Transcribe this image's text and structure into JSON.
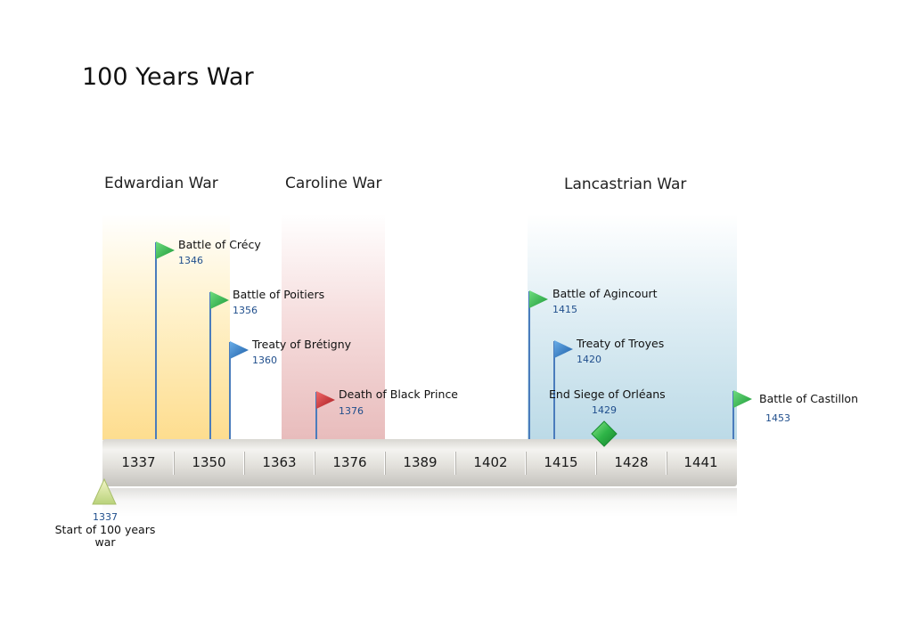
{
  "title": "100 Years War",
  "eras": [
    {
      "label": "Edwardian War",
      "color": "#fdd982"
    },
    {
      "label": "Caroline War",
      "color": "#e4b0b0"
    },
    {
      "label": "Lancastrian War",
      "color": "#b4d6e4"
    }
  ],
  "axis": {
    "ticks": [
      "1337",
      "1350",
      "1363",
      "1376",
      "1389",
      "1402",
      "1415",
      "1428",
      "1441"
    ]
  },
  "events": [
    {
      "title": "Battle of Crécy",
      "year": "1346",
      "flag_color": "green"
    },
    {
      "title": "Battle of Poitiers",
      "year": "1356",
      "flag_color": "green"
    },
    {
      "title": "Treaty of Brétigny",
      "year": "1360",
      "flag_color": "blue"
    },
    {
      "title": "Death of Black Prince",
      "year": "1376",
      "flag_color": "red"
    },
    {
      "title": "Battle of Agincourt",
      "year": "1415",
      "flag_color": "green"
    },
    {
      "title": "Treaty of Troyes",
      "year": "1420",
      "flag_color": "blue"
    },
    {
      "title": "End Siege of Orléans",
      "year": "1429",
      "marker": "green-diamond"
    },
    {
      "title": "Battle of Castillon",
      "year": "1453",
      "flag_color": "green"
    }
  ],
  "start_milestone": {
    "year": "1337",
    "description": "Start of 100 years war",
    "marker": "triangle"
  },
  "colors": {
    "flag_green": "#2eb34a",
    "flag_blue": "#2f79c2",
    "flag_red": "#c8262c",
    "event_line": "#4a7cbc",
    "year_text": "#1f4e8c"
  }
}
